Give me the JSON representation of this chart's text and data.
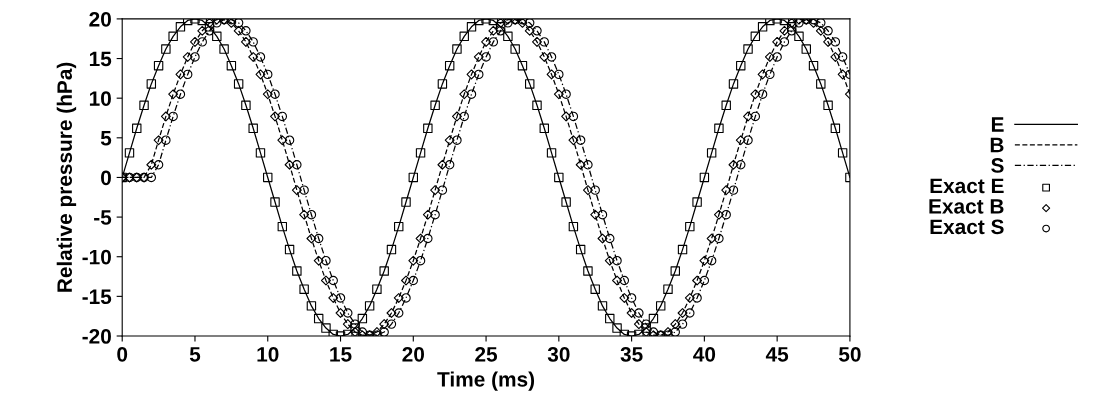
{
  "chart_data": {
    "type": "line",
    "xlabel": "Time (ms)",
    "ylabel": "Relative pressure (hPa)",
    "xlim": [
      0,
      50
    ],
    "xticks": [
      0,
      5,
      10,
      15,
      20,
      25,
      30,
      35,
      40,
      45,
      50
    ],
    "ylim": [
      -20,
      20
    ],
    "yticks": [
      -20,
      -15,
      -10,
      -5,
      0,
      5,
      10,
      15,
      20
    ],
    "grid": false,
    "legend": "right",
    "x": [
      0,
      0.5,
      1,
      1.5,
      2,
      2.5,
      3,
      3.5,
      4,
      4.5,
      5,
      5.5,
      6,
      6.5,
      7,
      7.5,
      8,
      8.5,
      9,
      9.5,
      10,
      10.5,
      11,
      11.5,
      12,
      12.5,
      13,
      13.5,
      14,
      14.5,
      15,
      15.5,
      16,
      16.5,
      17,
      17.5,
      18,
      18.5,
      19,
      19.5,
      20,
      20.5,
      21,
      21.5,
      22,
      22.5,
      23,
      23.5,
      24,
      24.5,
      25,
      25.5,
      26,
      26.5,
      27,
      27.5,
      28,
      28.5,
      29,
      29.5,
      30,
      30.5,
      31,
      31.5,
      32,
      32.5,
      33,
      33.5,
      34,
      34.5,
      35,
      35.5,
      36,
      36.5,
      37,
      37.5,
      38,
      38.5,
      39,
      39.5,
      40,
      40.5,
      41,
      41.5,
      42,
      42.5,
      43,
      43.5,
      44,
      44.5,
      45,
      45.5,
      46,
      46.5,
      47,
      47.5,
      48,
      48.5,
      49,
      49.5,
      50
    ],
    "series": [
      {
        "name": "E",
        "line_style": "solid",
        "marker": "none",
        "color": "#000000",
        "values": [
          0,
          3.1,
          6.2,
          9.1,
          11.8,
          14.1,
          16.2,
          17.8,
          19.0,
          19.8,
          20,
          19.8,
          19.0,
          17.8,
          16.2,
          14.1,
          11.8,
          9.1,
          6.2,
          3.1,
          0,
          -3.1,
          -6.2,
          -9.1,
          -11.8,
          -14.1,
          -16.2,
          -17.8,
          -19.0,
          -19.8,
          -20,
          -19.8,
          -19.0,
          -17.8,
          -16.2,
          -14.1,
          -11.8,
          -9.1,
          -6.2,
          -3.1,
          0,
          3.1,
          6.2,
          9.1,
          11.8,
          14.1,
          16.2,
          17.8,
          19.0,
          19.8,
          20,
          19.8,
          19.0,
          17.8,
          16.2,
          14.1,
          11.8,
          9.1,
          6.2,
          3.1,
          0,
          -3.1,
          -6.2,
          -9.1,
          -11.8,
          -14.1,
          -16.2,
          -17.8,
          -19.0,
          -19.8,
          -20,
          -19.8,
          -19.0,
          -17.8,
          -16.2,
          -14.1,
          -11.8,
          -9.1,
          -6.2,
          -3.1,
          0,
          3.1,
          6.2,
          9.1,
          11.8,
          14.1,
          16.2,
          17.8,
          19.0,
          19.8,
          20,
          19.8,
          19.0,
          17.8,
          16.2,
          14.1,
          11.8,
          9.1,
          6.2,
          3.1,
          0
        ]
      },
      {
        "name": "B",
        "line_style": "dashed",
        "marker": "none",
        "color": "#000000",
        "values": [
          0,
          0,
          0,
          0,
          1.6,
          4.7,
          7.7,
          10.5,
          13.0,
          15.2,
          17.1,
          18.5,
          19.5,
          19.9,
          19.9,
          19.5,
          18.5,
          17.1,
          15.2,
          13.0,
          10.5,
          7.7,
          4.7,
          1.6,
          -1.6,
          -4.7,
          -7.7,
          -10.5,
          -13.0,
          -15.2,
          -17.1,
          -18.5,
          -19.5,
          -19.9,
          -19.9,
          -19.5,
          -18.5,
          -17.1,
          -15.2,
          -13.0,
          -10.5,
          -7.7,
          -4.7,
          -1.6,
          1.6,
          4.7,
          7.7,
          10.5,
          13.0,
          15.2,
          17.1,
          18.5,
          19.5,
          19.9,
          19.9,
          19.5,
          18.5,
          17.1,
          15.2,
          13.0,
          10.5,
          7.7,
          4.7,
          1.6,
          -1.6,
          -4.7,
          -7.7,
          -10.5,
          -13.0,
          -15.2,
          -17.1,
          -18.5,
          -19.5,
          -19.9,
          -19.9,
          -19.5,
          -18.5,
          -17.1,
          -15.2,
          -13.0,
          -10.5,
          -7.7,
          -4.7,
          -1.6,
          1.6,
          4.7,
          7.7,
          10.5,
          13.0,
          15.2,
          17.1,
          18.5,
          19.5,
          19.9,
          19.9,
          19.5,
          18.5,
          17.1,
          15.2,
          13.0,
          10.5
        ]
      },
      {
        "name": "S",
        "line_style": "dashdot",
        "marker": "none",
        "color": "#000000",
        "values": [
          0,
          0,
          0,
          0,
          0,
          1.6,
          4.7,
          7.7,
          10.5,
          13.0,
          15.2,
          17.1,
          18.5,
          19.5,
          19.9,
          19.9,
          19.5,
          18.5,
          17.1,
          15.2,
          13.0,
          10.5,
          7.7,
          4.7,
          1.6,
          -1.6,
          -4.7,
          -7.7,
          -10.5,
          -13.0,
          -15.2,
          -17.1,
          -18.5,
          -19.5,
          -19.9,
          -19.9,
          -19.5,
          -18.5,
          -17.1,
          -15.2,
          -13.0,
          -10.5,
          -7.7,
          -4.7,
          -1.6,
          1.6,
          4.7,
          7.7,
          10.5,
          13.0,
          15.2,
          17.1,
          18.5,
          19.5,
          19.9,
          19.9,
          19.5,
          18.5,
          17.1,
          15.2,
          13.0,
          10.5,
          7.7,
          4.7,
          1.6,
          -1.6,
          -4.7,
          -7.7,
          -10.5,
          -13.0,
          -15.2,
          -17.1,
          -18.5,
          -19.5,
          -19.9,
          -19.9,
          -19.5,
          -18.5,
          -17.1,
          -15.2,
          -13.0,
          -10.5,
          -7.7,
          -4.7,
          -1.6,
          1.6,
          4.7,
          7.7,
          10.5,
          13.0,
          15.2,
          17.1,
          18.5,
          19.5,
          19.9,
          19.9,
          19.5,
          18.5,
          17.1,
          15.2,
          13.0
        ]
      },
      {
        "name": "Exact E",
        "type": "scatter",
        "marker": "square",
        "color": "#000000",
        "values": [
          0,
          3.1,
          6.2,
          9.1,
          11.8,
          14.1,
          16.2,
          17.8,
          19.0,
          19.8,
          20,
          19.8,
          19.0,
          17.8,
          16.2,
          14.1,
          11.8,
          9.1,
          6.2,
          3.1,
          0,
          -3.1,
          -6.2,
          -9.1,
          -11.8,
          -14.1,
          -16.2,
          -17.8,
          -19.0,
          -19.8,
          -20,
          -19.8,
          -19.0,
          -17.8,
          -16.2,
          -14.1,
          -11.8,
          -9.1,
          -6.2,
          -3.1,
          0,
          3.1,
          6.2,
          9.1,
          11.8,
          14.1,
          16.2,
          17.8,
          19.0,
          19.8,
          20,
          19.8,
          19.0,
          17.8,
          16.2,
          14.1,
          11.8,
          9.1,
          6.2,
          3.1,
          0,
          -3.1,
          -6.2,
          -9.1,
          -11.8,
          -14.1,
          -16.2,
          -17.8,
          -19.0,
          -19.8,
          -20,
          -19.8,
          -19.0,
          -17.8,
          -16.2,
          -14.1,
          -11.8,
          -9.1,
          -6.2,
          -3.1,
          0,
          3.1,
          6.2,
          9.1,
          11.8,
          14.1,
          16.2,
          17.8,
          19.0,
          19.8,
          20,
          19.8,
          19.0,
          17.8,
          16.2,
          14.1,
          11.8,
          9.1,
          6.2,
          3.1,
          0
        ]
      },
      {
        "name": "Exact B",
        "type": "scatter",
        "marker": "diamond",
        "color": "#000000",
        "values": [
          0,
          0,
          0,
          0,
          1.6,
          4.7,
          7.7,
          10.5,
          13.0,
          15.2,
          17.1,
          18.5,
          19.5,
          19.9,
          19.9,
          19.5,
          18.5,
          17.1,
          15.2,
          13.0,
          10.5,
          7.7,
          4.7,
          1.6,
          -1.6,
          -4.7,
          -7.7,
          -10.5,
          -13.0,
          -15.2,
          -17.1,
          -18.5,
          -19.5,
          -19.9,
          -19.9,
          -19.5,
          -18.5,
          -17.1,
          -15.2,
          -13.0,
          -10.5,
          -7.7,
          -4.7,
          -1.6,
          1.6,
          4.7,
          7.7,
          10.5,
          13.0,
          15.2,
          17.1,
          18.5,
          19.5,
          19.9,
          19.9,
          19.5,
          18.5,
          17.1,
          15.2,
          13.0,
          10.5,
          7.7,
          4.7,
          1.6,
          -1.6,
          -4.7,
          -7.7,
          -10.5,
          -13.0,
          -15.2,
          -17.1,
          -18.5,
          -19.5,
          -19.9,
          -19.9,
          -19.5,
          -18.5,
          -17.1,
          -15.2,
          -13.0,
          -10.5,
          -7.7,
          -4.7,
          -1.6,
          1.6,
          4.7,
          7.7,
          10.5,
          13.0,
          15.2,
          17.1,
          18.5,
          19.5,
          19.9,
          19.9,
          19.5,
          18.5,
          17.1,
          15.2,
          13.0,
          10.5
        ]
      },
      {
        "name": "Exact S",
        "type": "scatter",
        "marker": "circle",
        "color": "#000000",
        "values": [
          0,
          0,
          0,
          0,
          0,
          1.6,
          4.7,
          7.7,
          10.5,
          13.0,
          15.2,
          17.1,
          18.5,
          19.5,
          19.9,
          19.9,
          19.5,
          18.5,
          17.1,
          15.2,
          13.0,
          10.5,
          7.7,
          4.7,
          1.6,
          -1.6,
          -4.7,
          -7.7,
          -10.5,
          -13.0,
          -15.2,
          -17.1,
          -18.5,
          -19.5,
          -19.9,
          -19.9,
          -19.5,
          -18.5,
          -17.1,
          -15.2,
          -13.0,
          -10.5,
          -7.7,
          -4.7,
          -1.6,
          1.6,
          4.7,
          7.7,
          10.5,
          13.0,
          15.2,
          17.1,
          18.5,
          19.5,
          19.9,
          19.9,
          19.5,
          18.5,
          17.1,
          15.2,
          13.0,
          10.5,
          7.7,
          4.7,
          1.6,
          -1.6,
          -4.7,
          -7.7,
          -10.5,
          -13.0,
          -15.2,
          -17.1,
          -18.5,
          -19.5,
          -19.9,
          -19.9,
          -19.5,
          -18.5,
          -17.1,
          -15.2,
          -13.0,
          -10.5,
          -7.7,
          -4.7,
          -1.6,
          1.6,
          4.7,
          7.7,
          10.5,
          13.0,
          15.2,
          17.1,
          18.5,
          19.5,
          19.9,
          19.9,
          19.5,
          18.5,
          17.1,
          15.2,
          13.0
        ]
      }
    ]
  }
}
